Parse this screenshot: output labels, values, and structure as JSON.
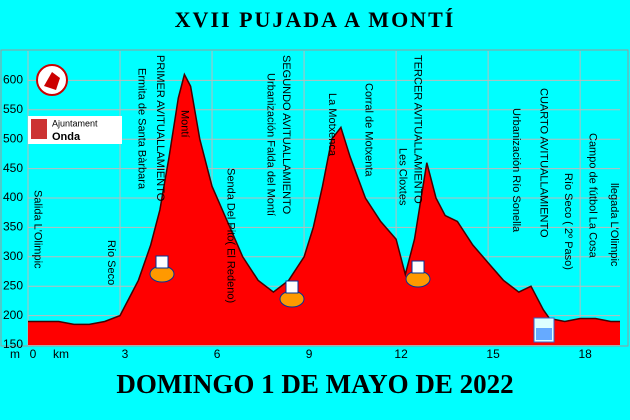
{
  "chart_data": {
    "type": "area",
    "title": "XVII   PUJADA A MONTÍ",
    "subtitle": "DOMINGO 1 DE MAYO DE 2022",
    "x_label": "km",
    "y_label": "m",
    "logo_text": [
      "Ajuntament",
      "Onda"
    ],
    "color": "#ff0000",
    "grid": true,
    "x": [
      0,
      1,
      1.5,
      2,
      2.5,
      3,
      3.3,
      3.6,
      4,
      4.3,
      4.6,
      4.9,
      5.1,
      5.3,
      5.6,
      6,
      6.5,
      7,
      7.5,
      8,
      8.5,
      9,
      9.3,
      9.6,
      9.9,
      10.2,
      10.5,
      11,
      11.5,
      12,
      12.3,
      12.6,
      13,
      13.3,
      13.6,
      14,
      14.5,
      15,
      15.5,
      16,
      16.4,
      16.8,
      17,
      17.5,
      18,
      18.5,
      19,
      19.3
    ],
    "values": [
      190,
      190,
      185,
      185,
      190,
      200,
      230,
      260,
      320,
      380,
      470,
      570,
      610,
      590,
      500,
      420,
      360,
      300,
      260,
      240,
      260,
      300,
      350,
      420,
      500,
      520,
      470,
      400,
      360,
      330,
      270,
      330,
      460,
      400,
      370,
      360,
      320,
      290,
      260,
      240,
      250,
      210,
      195,
      190,
      195,
      195,
      190,
      190
    ],
    "xlim": [
      0,
      19.3
    ],
    "ylim": [
      150,
      650
    ],
    "xticks": [
      0,
      3,
      6,
      9,
      12,
      15,
      18
    ],
    "yticks": [
      150,
      200,
      250,
      300,
      350,
      400,
      450,
      500,
      550,
      600
    ],
    "annotations": [
      {
        "x": 0.3,
        "text": "Salida L'Olimpic"
      },
      {
        "x": 2.7,
        "text": "Río Seco"
      },
      {
        "x": 3.7,
        "text": "Ermita de Santa Bàrbara"
      },
      {
        "x": 4.3,
        "text": "PRIMER AVITUALLAMIENTO"
      },
      {
        "x": 5.1,
        "text": "Montí"
      },
      {
        "x": 6.6,
        "text": "Senda Del Pito( El Redeno)"
      },
      {
        "x": 7.9,
        "text": "Urbanización Falda del Montí"
      },
      {
        "x": 8.4,
        "text": "SEGUNDO AVITUALLAMIENTO"
      },
      {
        "x": 9.9,
        "text": "La Motxenca"
      },
      {
        "x": 11.1,
        "text": "Corral de Motxenta"
      },
      {
        "x": 12.2,
        "text": "Les Cloxtes"
      },
      {
        "x": 12.7,
        "text": "TERCER AVITUALLAMIENTO"
      },
      {
        "x": 15.9,
        "text": "Urbanización Río Sonella"
      },
      {
        "x": 16.8,
        "text": "CUARTO AVITUALLAMIENTO"
      },
      {
        "x": 17.6,
        "text": "Río Seco ( 2º Paso)"
      },
      {
        "x": 18.4,
        "text": "Campo de fútbol La Cosa"
      },
      {
        "x": 19.1,
        "text": "llegada L'Olimpic"
      }
    ]
  }
}
